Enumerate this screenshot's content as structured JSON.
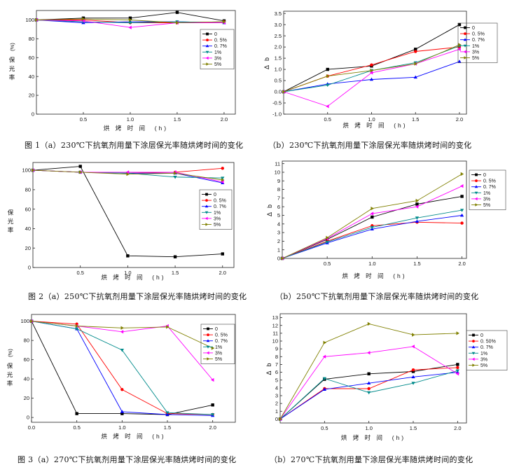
{
  "figure": {
    "captions": [
      "图 1（a）230℃下抗氧剂用量下涂层保光率随烘烤时间的变化",
      "（b）230℃下抗氧剂用量下涂层保光率随烘烤时间的变化",
      "图 2（a）250℃下抗氧剂用量下涂层保光率随烘烤时间的变化",
      "（b）250℃下抗氧剂用量下涂层保光率随烘烤时间的变化",
      "图 3（a）270℃下抗氧剂用量下涂层保光率随烘烤时间的变化",
      "（b）270℃下抗氧剂用量下涂层保光率随烘烤时间的变化"
    ]
  },
  "chart_data": [
    {
      "type": "line",
      "x": [
        0,
        0.5,
        1.0,
        1.5,
        2.0
      ],
      "xlim": [
        0,
        2.12
      ],
      "ylim": [
        0,
        110
      ],
      "xticks": [
        "0.5",
        "1.0",
        "1.5",
        "2.0"
      ],
      "yticks": [
        "0",
        "20",
        "40",
        "60",
        "80",
        "100"
      ],
      "xlabel": "烘 烤 时 间  (h)",
      "ylabel": "保光率",
      "ylabel_unit": "(%)",
      "grid": false,
      "legend": "upper-right",
      "series": [
        {
          "name": "0",
          "color": "#000000",
          "marker": "square",
          "values": [
            100,
            102,
            102,
            108,
            99
          ]
        },
        {
          "name": "0. 5%",
          "color": "#ff0000",
          "marker": "circle",
          "values": [
            100,
            100,
            97,
            97,
            98
          ]
        },
        {
          "name": "0. 7%",
          "color": "#0000ff",
          "marker": "triangle-up",
          "values": [
            100,
            97,
            98,
            98,
            97
          ]
        },
        {
          "name": "1%",
          "color": "#008b8b",
          "marker": "triangle-down",
          "values": [
            100,
            98,
            97,
            98,
            97
          ]
        },
        {
          "name": "3%",
          "color": "#ff00ff",
          "marker": "triangle-left",
          "values": [
            100,
            99,
            92,
            97,
            97
          ]
        },
        {
          "name": "5%",
          "color": "#808000",
          "marker": "triangle-right",
          "values": [
            100,
            101,
            100,
            97,
            98
          ]
        }
      ]
    },
    {
      "type": "line",
      "x": [
        0,
        0.5,
        1.0,
        1.5,
        2.0
      ],
      "xlim": [
        0,
        2.08
      ],
      "ylim": [
        -1.0,
        3.6
      ],
      "xticks": [
        "0.5",
        "1.0",
        "1.5",
        "2.0"
      ],
      "yticks": [
        "-1.0",
        "-0.5",
        "0.0",
        "0.5",
        "1.0",
        "1.5",
        "2.0",
        "2.5",
        "3.0",
        "3.5"
      ],
      "xlabel": "烘 烤 时 间  (h)",
      "ylabel": "Δ b",
      "grid": false,
      "legend": "right",
      "series": [
        {
          "name": "0",
          "color": "#000000",
          "marker": "square",
          "values": [
            0,
            1.0,
            1.15,
            1.9,
            3.0
          ]
        },
        {
          "name": "0. 5%",
          "color": "#ff0000",
          "marker": "circle",
          "values": [
            0,
            0.7,
            1.2,
            1.8,
            2.0
          ]
        },
        {
          "name": "0. 7%",
          "color": "#0000ff",
          "marker": "triangle-up",
          "values": [
            0,
            0.35,
            0.55,
            0.65,
            1.35
          ]
        },
        {
          "name": "1%",
          "color": "#008b8b",
          "marker": "triangle-down",
          "values": [
            0,
            0.3,
            0.95,
            1.3,
            2.05
          ]
        },
        {
          "name": "3%",
          "color": "#ff00ff",
          "marker": "triangle-left",
          "values": [
            0,
            -0.65,
            0.85,
            1.25,
            1.9
          ]
        },
        {
          "name": "5%",
          "color": "#808000",
          "marker": "triangle-right",
          "values": [
            0,
            0.7,
            0.95,
            1.25,
            2.1
          ]
        }
      ]
    },
    {
      "type": "line",
      "x": [
        0,
        0.5,
        1.0,
        1.5,
        2.0
      ],
      "xlim": [
        0,
        2.12
      ],
      "ylim": [
        0,
        108
      ],
      "xticks": [
        "0.5",
        "1.0",
        "1.5",
        "2.0"
      ],
      "yticks": [
        "0",
        "20",
        "40",
        "60",
        "80",
        "100"
      ],
      "xlabel": "烘 烤 时 间  (h)",
      "ylabel": "保光率",
      "grid": false,
      "legend": "right",
      "series": [
        {
          "name": "0",
          "color": "#000000",
          "marker": "square",
          "values": [
            100,
            104,
            12,
            11,
            14
          ]
        },
        {
          "name": "0. 5%",
          "color": "#ff0000",
          "marker": "circle",
          "values": [
            100,
            98,
            97,
            98,
            102
          ]
        },
        {
          "name": "0. 7%",
          "color": "#0000ff",
          "marker": "triangle-up",
          "values": [
            100,
            98,
            97,
            97,
            87
          ]
        },
        {
          "name": "1%",
          "color": "#008b8b",
          "marker": "triangle-down",
          "values": [
            100,
            98,
            97,
            93,
            92
          ]
        },
        {
          "name": "3%",
          "color": "#ff00ff",
          "marker": "triangle-left",
          "values": [
            100,
            98,
            98,
            98,
            88
          ]
        },
        {
          "name": "5%",
          "color": "#808000",
          "marker": "triangle-right",
          "values": [
            100,
            98,
            96,
            97,
            90
          ]
        }
      ]
    },
    {
      "type": "line",
      "x": [
        0,
        0.5,
        1.0,
        1.5,
        2.0
      ],
      "xlim": [
        0,
        2.05
      ],
      "ylim": [
        0,
        11.3
      ],
      "xticks": [
        "0.5",
        "1.0",
        "1.5",
        "2.0"
      ],
      "yticks": [
        "0",
        "1",
        "2",
        "3",
        "4",
        "5",
        "6",
        "7",
        "8",
        "9",
        "10",
        "11"
      ],
      "xlabel": "烘 烤 时 间  (h)",
      "ylabel": "Δ b",
      "grid": false,
      "legend": "right",
      "series": [
        {
          "name": "0",
          "color": "#000000",
          "marker": "square",
          "values": [
            0,
            2.2,
            4.8,
            6.3,
            7.2
          ]
        },
        {
          "name": "0. 5%",
          "color": "#ff0000",
          "marker": "circle",
          "values": [
            0,
            2.0,
            3.8,
            4.2,
            4.1
          ]
        },
        {
          "name": "0. 7%",
          "color": "#0000ff",
          "marker": "triangle-up",
          "values": [
            0,
            1.8,
            3.4,
            4.3,
            5.0
          ]
        },
        {
          "name": "1%",
          "color": "#008b8b",
          "marker": "triangle-down",
          "values": [
            0,
            1.9,
            3.6,
            4.7,
            5.6
          ]
        },
        {
          "name": "3%",
          "color": "#ff00ff",
          "marker": "triangle-left",
          "values": [
            0,
            2.3,
            5.2,
            6.0,
            8.4
          ]
        },
        {
          "name": "5%",
          "color": "#808000",
          "marker": "triangle-right",
          "values": [
            0,
            2.4,
            5.8,
            6.7,
            9.8
          ]
        }
      ]
    },
    {
      "type": "line",
      "x": [
        0,
        0.5,
        1.0,
        1.5,
        2.0
      ],
      "xlim": [
        0,
        2.25
      ],
      "ylim": [
        -5,
        107
      ],
      "xticks": [
        "0.0",
        "0.5",
        "1.0",
        "1.5",
        "2.0"
      ],
      "yticks": [
        "0",
        "20",
        "40",
        "60",
        "80",
        "100"
      ],
      "xlabel": "烘 烤 时 间  (h)",
      "ylabel": "保光率",
      "ylabel_unit": "(%)",
      "grid": false,
      "legend": "upper-right",
      "series": [
        {
          "name": "0",
          "color": "#000000",
          "marker": "square",
          "values": [
            100,
            4,
            4,
            3,
            13
          ]
        },
        {
          "name": "0. 5%",
          "color": "#ff0000",
          "marker": "circle",
          "values": [
            100,
            97,
            29,
            4,
            3
          ]
        },
        {
          "name": "0. 7%",
          "color": "#0000ff",
          "marker": "triangle-up",
          "values": [
            100,
            92,
            6,
            3,
            2
          ]
        },
        {
          "name": "1%",
          "color": "#008b8b",
          "marker": "triangle-down",
          "values": [
            100,
            92,
            70,
            5,
            3
          ]
        },
        {
          "name": "3%",
          "color": "#ff00ff",
          "marker": "triangle-left",
          "values": [
            100,
            95,
            89,
            95,
            39
          ]
        },
        {
          "name": "5%",
          "color": "#808000",
          "marker": "triangle-right",
          "values": [
            100,
            95,
            93,
            94,
            72
          ]
        }
      ]
    },
    {
      "type": "line",
      "x": [
        0,
        0.5,
        1.0,
        1.5,
        2.0
      ],
      "xlim": [
        0,
        2.1
      ],
      "ylim": [
        -0.5,
        13.5
      ],
      "xticks": [
        "0.5",
        "1.0",
        "1.5",
        "2.0"
      ],
      "yticks": [
        "0",
        "1",
        "2",
        "3",
        "4",
        "5",
        "6",
        "7",
        "8",
        "9",
        "10",
        "11",
        "12",
        "13"
      ],
      "xlabel": "烘 烤 时 间  (h)",
      "ylabel": "Δ b",
      "grid": false,
      "legend": "right",
      "series": [
        {
          "name": "0",
          "color": "#000000",
          "marker": "square",
          "values": [
            0,
            5.1,
            5.8,
            6.1,
            7.0
          ]
        },
        {
          "name": "0. 50%",
          "color": "#ff0000",
          "marker": "circle",
          "values": [
            0,
            3.9,
            3.9,
            6.3,
            6.6
          ]
        },
        {
          "name": "0. 7%",
          "color": "#0000ff",
          "marker": "triangle-up",
          "values": [
            0,
            3.8,
            4.6,
            5.4,
            6.0
          ]
        },
        {
          "name": "1%",
          "color": "#008b8b",
          "marker": "triangle-down",
          "values": [
            0,
            5.2,
            3.4,
            4.6,
            6.2
          ]
        },
        {
          "name": "3%",
          "color": "#ff00ff",
          "marker": "triangle-left",
          "values": [
            0,
            8.0,
            8.5,
            9.3,
            5.8
          ]
        },
        {
          "name": "5%",
          "color": "#808000",
          "marker": "triangle-right",
          "values": [
            0,
            9.8,
            12.2,
            10.8,
            11.0
          ]
        }
      ]
    }
  ]
}
